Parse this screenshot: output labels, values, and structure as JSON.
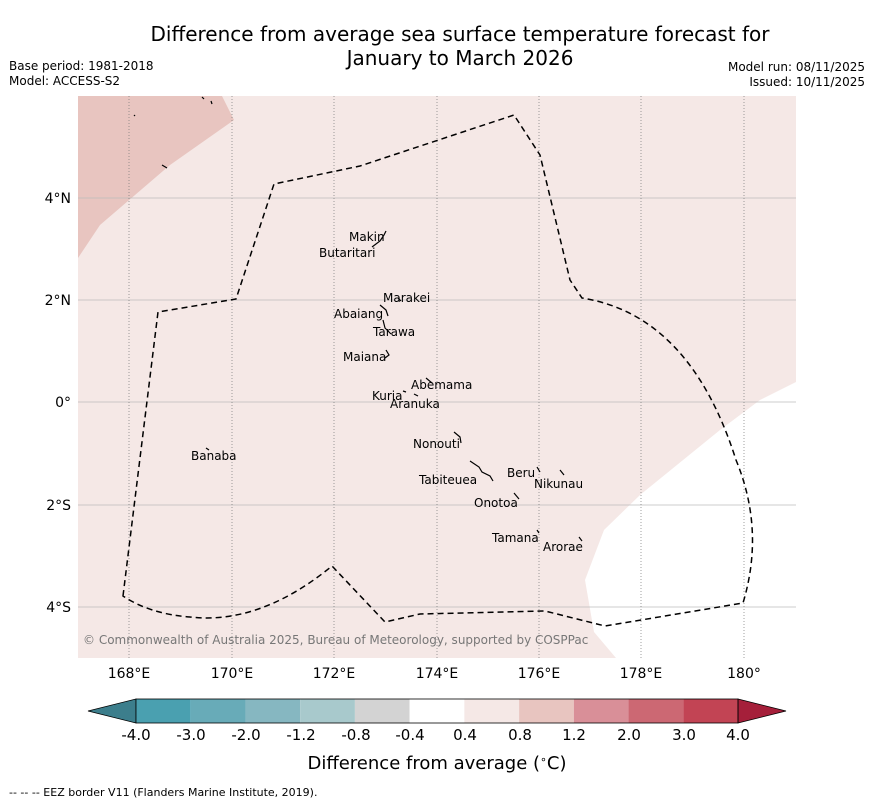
{
  "title_line1": "Difference from average sea surface temperature forecast for",
  "title_line2": "January to March 2026",
  "meta_left": [
    "Base period: 1981-2018",
    "Model: ACCESS-S2"
  ],
  "meta_right": [
    "Model run: 08/11/2025",
    "Issued: 10/11/2025"
  ],
  "map": {
    "lon_ticks": [
      "168°E",
      "170°E",
      "172°E",
      "174°E",
      "176°E",
      "178°E",
      "180°"
    ],
    "lat_ticks": [
      "4°N",
      "2°N",
      "0°",
      "2°S",
      "4°S"
    ],
    "islands": [
      {
        "name": "Makin"
      },
      {
        "name": "Butaritari"
      },
      {
        "name": "Marakei"
      },
      {
        "name": "Abaiang"
      },
      {
        "name": "Tarawa"
      },
      {
        "name": "Maiana"
      },
      {
        "name": "Abemama"
      },
      {
        "name": "Kuria"
      },
      {
        "name": "Aranuka"
      },
      {
        "name": "Nonouti"
      },
      {
        "name": "Banaba"
      },
      {
        "name": "Beru"
      },
      {
        "name": "Tabiteuea"
      },
      {
        "name": "Nikunau"
      },
      {
        "name": "Onotoa"
      },
      {
        "name": "Tamana"
      },
      {
        "name": "Arorae"
      }
    ],
    "copyright": "© Commonwealth of Australia 2025, Bureau of Meteorology, supported by COSPPac"
  },
  "colorbar": {
    "ticks": [
      "-4.0",
      "-3.0",
      "-2.0",
      "-1.2",
      "-0.8",
      "-0.4",
      "0.4",
      "0.8",
      "1.2",
      "2.0",
      "3.0",
      "4.0"
    ],
    "colors": [
      "#3c7e8c",
      "#4aa0b0",
      "#68abb8",
      "#86b7c1",
      "#a8c9cc",
      "#d3d3d3",
      "#ffffff",
      "#f5e8e6",
      "#e8c5c0",
      "#d98f98",
      "#cc6873",
      "#c24454",
      "#a51f3a"
    ],
    "label": "Difference from average (°C)",
    "label_pre": "Difference from average (",
    "label_deg": "∘",
    "label_post": "C)"
  },
  "footer": "--  --  -- EEZ border V11 (Flanders Marine Institute, 2019)."
}
